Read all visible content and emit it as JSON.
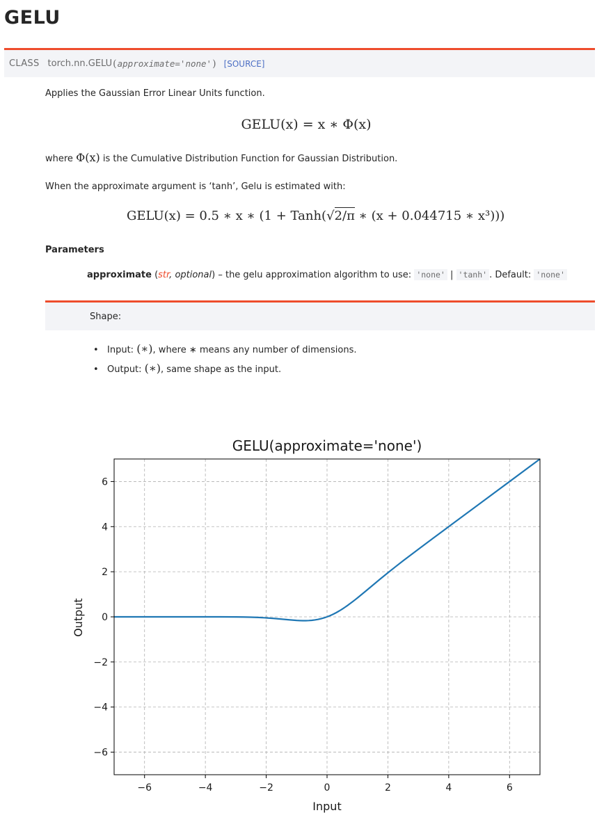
{
  "header": {
    "title": "GELU"
  },
  "signature": {
    "kind": "CLASS",
    "name": "torch.nn.GELU",
    "open_paren": "(",
    "argument": "approximate='none'",
    "close_paren": ")",
    "source_link": "[SOURCE]"
  },
  "description": {
    "intro": "Applies the Gaussian Error Linear Units function.",
    "equation1": "GELU(x) = x ∗ Φ(x)",
    "where_prefix": "where",
    "where_math": "Φ(x)",
    "where_suffix": "is the Cumulative Distribution Function for Gaussian Distribution.",
    "approx_note": "When the approximate argument is ‘tanh’, Gelu is estimated with:",
    "equation2_left": "GELU(x) = 0.5 ∗ x ∗ (1 + Tanh(",
    "equation2_sqrt": "2/π",
    "equation2_right": " ∗ (x + 0.044715 ∗ x³)))"
  },
  "parameters": {
    "heading": "Parameters",
    "items": [
      {
        "name": "approximate",
        "type_open": "(",
        "type": "str",
        "type_sep": ", ",
        "optional": "optional",
        "type_close": ")",
        "desc": " – the gelu approximation algorithm to use: ",
        "opt1": "'none'",
        "sep": " | ",
        "opt2": "'tanh'",
        "default_label": ". Default: ",
        "default_value": "'none'"
      }
    ]
  },
  "shape": {
    "label": "Shape:",
    "items": [
      {
        "name": "Input: ",
        "math": "(∗)",
        "text": ", where ∗ means any number of dimensions."
      },
      {
        "name": "Output: ",
        "math": "(∗)",
        "text": ", same shape as the input."
      }
    ]
  },
  "chart_data": {
    "type": "line",
    "title": "GELU(approximate='none')",
    "xlabel": "Input",
    "ylabel": "Output",
    "xlim": [
      -7,
      7
    ],
    "ylim": [
      -7,
      7
    ],
    "xticks": [
      -6,
      -4,
      -2,
      0,
      2,
      4,
      6
    ],
    "yticks": [
      -6,
      -4,
      -2,
      0,
      2,
      4,
      6
    ],
    "grid": true,
    "color": "#1f77b4",
    "series": [
      {
        "x": [
          -7,
          -6,
          -5,
          -4,
          -3.5,
          -3,
          -2.75,
          -2.5,
          -2.25,
          -2,
          -1.75,
          -1.5,
          -1.25,
          -1,
          -0.9,
          -0.8,
          -0.75,
          -0.7,
          -0.6,
          -0.5,
          -0.4,
          -0.3,
          -0.2,
          -0.1,
          0,
          0.1,
          0.2,
          0.3,
          0.4,
          0.5,
          0.6,
          0.7,
          0.8,
          0.9,
          1,
          1.25,
          1.5,
          1.75,
          2,
          2.25,
          2.5,
          2.75,
          3,
          3.5,
          4,
          5,
          6,
          7
        ],
        "y": [
          0,
          0,
          0,
          -0.0001,
          -0.0008,
          -0.004,
          -0.0082,
          -0.0155,
          -0.0275,
          -0.0455,
          -0.0702,
          -0.1002,
          -0.132,
          -0.1587,
          -0.1657,
          -0.1695,
          -0.17,
          -0.1694,
          -0.1645,
          -0.1543,
          -0.1379,
          -0.1146,
          -0.0841,
          -0.046,
          0,
          0.054,
          0.1159,
          0.1854,
          0.2621,
          0.3457,
          0.4355,
          0.5306,
          0.6305,
          0.7343,
          0.8413,
          1.118,
          1.3998,
          1.6798,
          1.9545,
          2.2225,
          2.4845,
          2.7418,
          2.996,
          3.4992,
          3.9999,
          5,
          6,
          7
        ]
      }
    ]
  }
}
